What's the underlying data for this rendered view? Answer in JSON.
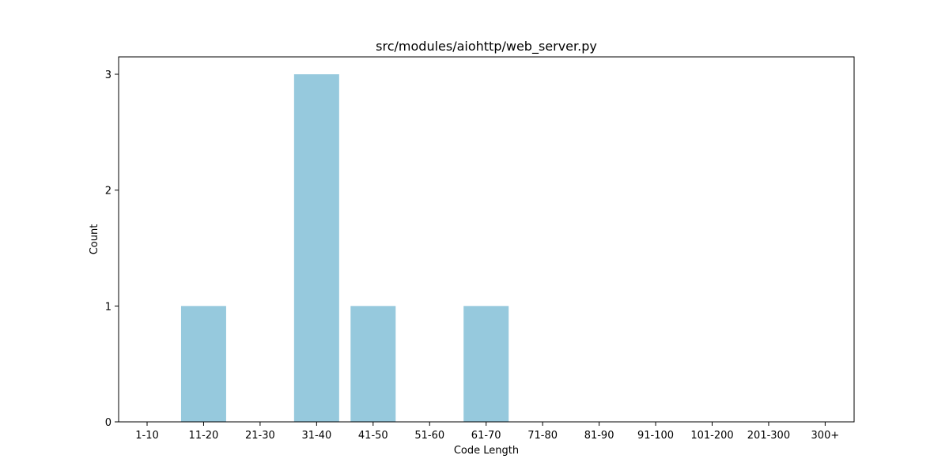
{
  "chart_data": {
    "type": "bar",
    "title": "src/modules/aiohttp/web_server.py",
    "xlabel": "Code Length",
    "ylabel": "Count",
    "categories": [
      "1-10",
      "11-20",
      "21-30",
      "31-40",
      "41-50",
      "51-60",
      "61-70",
      "71-80",
      "81-90",
      "91-100",
      "101-200",
      "201-300",
      "300+"
    ],
    "values": [
      0,
      1,
      0,
      3,
      1,
      0,
      1,
      0,
      0,
      0,
      0,
      0,
      0
    ],
    "yticks": [
      0,
      1,
      2,
      3
    ],
    "ylim": [
      0,
      3.15
    ],
    "grid": false,
    "bar_color": "#96c9dd"
  }
}
